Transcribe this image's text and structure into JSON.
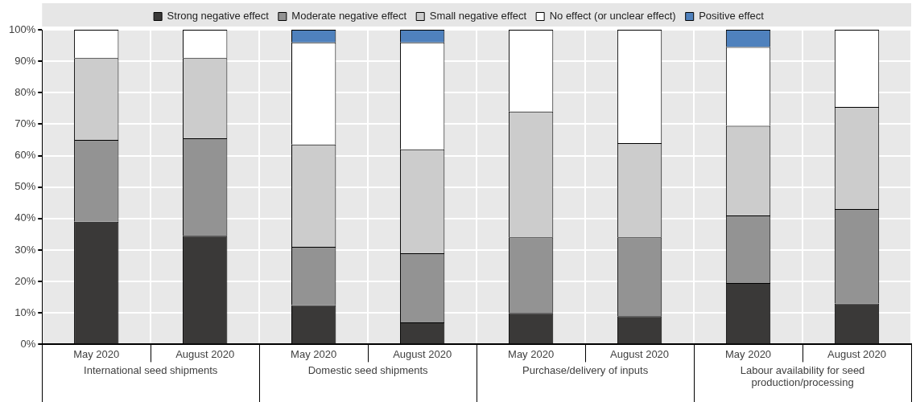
{
  "chart_data": {
    "type": "bar",
    "stacked": true,
    "categories": [
      "May 2020",
      "August 2020",
      "May 2020",
      "August 2020",
      "May 2020",
      "August 2020",
      "May 2020",
      "August 2020"
    ],
    "series": [
      {
        "name": "Strong negative effect",
        "color": "#3a3938",
        "values": [
          39,
          34.5,
          12.5,
          7,
          10,
          9,
          19.5,
          13
        ]
      },
      {
        "name": "Moderate negative effect",
        "color": "#939393",
        "values": [
          26,
          31,
          18.5,
          22,
          24,
          25,
          21.5,
          30
        ]
      },
      {
        "name": "Small negative effect",
        "color": "#cccccc",
        "values": [
          26,
          25.5,
          32.5,
          33,
          40,
          30,
          28.5,
          32.5
        ]
      },
      {
        "name": "No effect (or unclear effect)",
        "color": "#ffffff",
        "values": [
          9,
          9,
          32.5,
          34,
          26,
          36,
          25,
          24.5
        ]
      },
      {
        "name": "Positive effect",
        "color": "#4f81bd",
        "values": [
          0,
          0,
          4,
          4,
          0,
          0,
          5.5,
          0
        ]
      }
    ],
    "annotations": [
      "International seed shipments",
      "Domestic seed shipments",
      "Purchase/delivery of inputs",
      "Labour availability for seed production/processing"
    ],
    "ylim": [
      0,
      100
    ],
    "yticks": [
      {
        "value": 0,
        "label": "0%"
      },
      {
        "value": 10,
        "label": "10%"
      },
      {
        "value": 20,
        "label": "20%"
      },
      {
        "value": 30,
        "label": "30%"
      },
      {
        "value": 40,
        "label": "40%"
      },
      {
        "value": 50,
        "label": "50%"
      },
      {
        "value": 60,
        "label": "60%"
      },
      {
        "value": 70,
        "label": "70%"
      },
      {
        "value": 80,
        "label": "80%"
      },
      {
        "value": 90,
        "label": "90%"
      },
      {
        "value": 100,
        "label": "100%"
      }
    ],
    "grid": true,
    "legend": "top"
  }
}
